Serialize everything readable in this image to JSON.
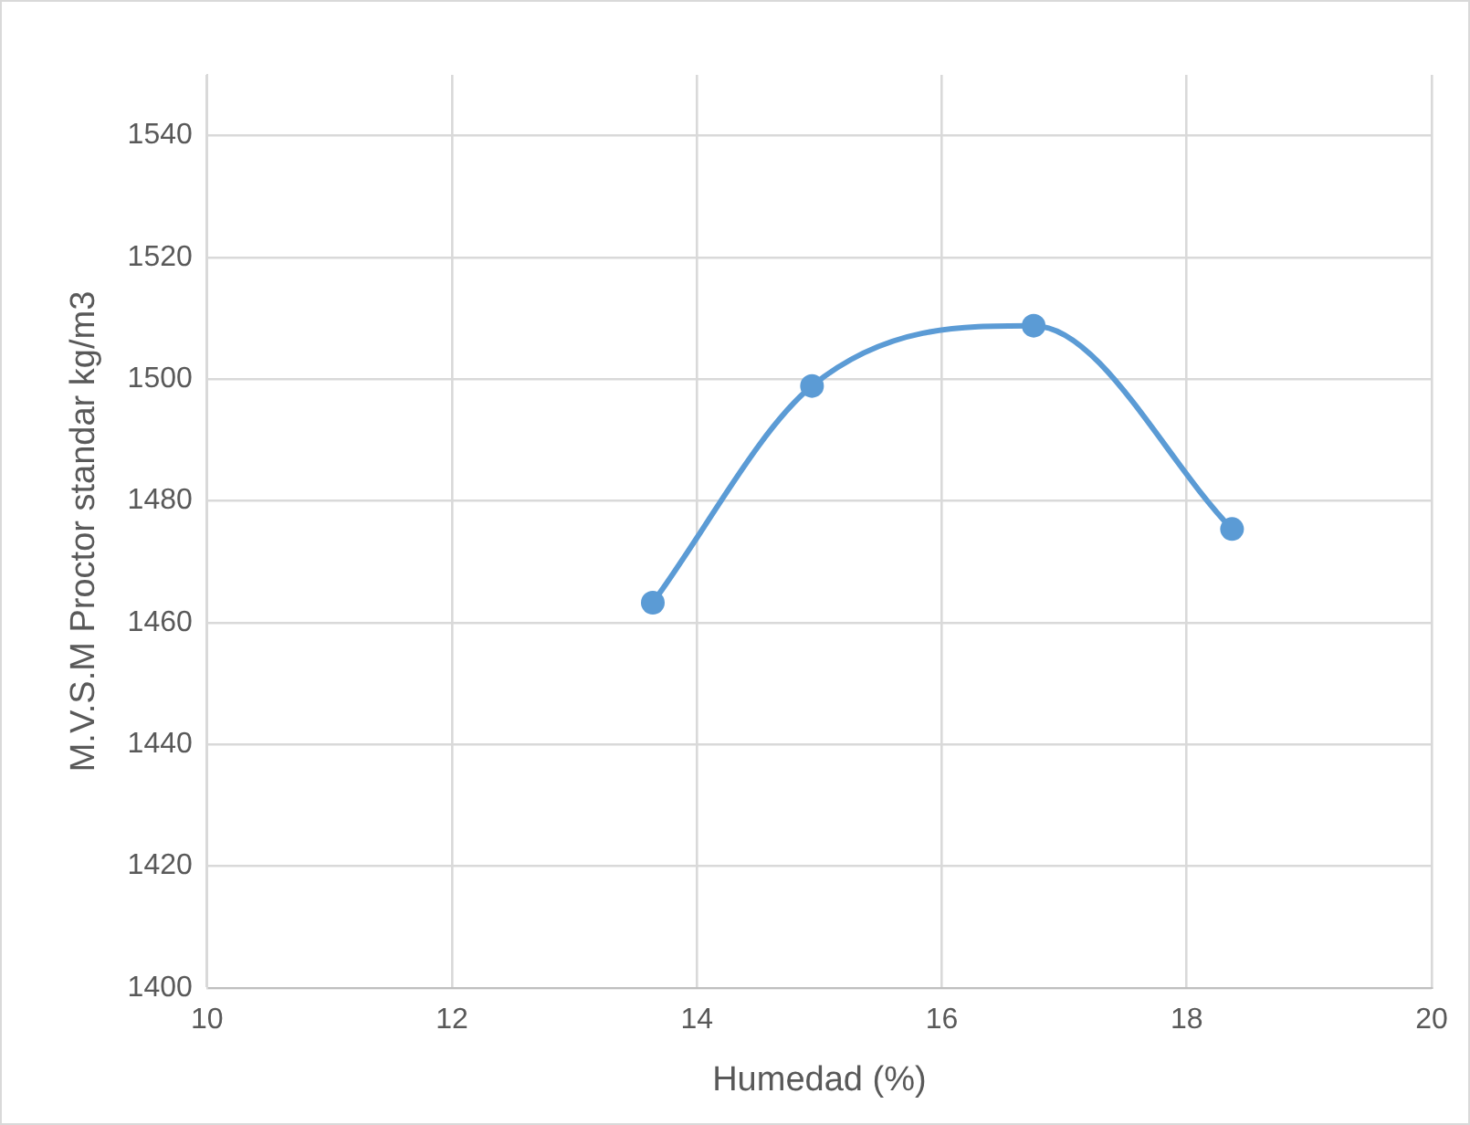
{
  "chart_data": {
    "type": "line",
    "xlabel": "Humedad (%)",
    "ylabel": "M.V.S.M Proctor standar kg/m3",
    "x": [
      13.64,
      14.94,
      16.75,
      18.37
    ],
    "series": [
      {
        "color": "#5b9bd5",
        "values": [
          1463.3,
          1498.9,
          1508.8,
          1475.4
        ]
      }
    ],
    "xlim": [
      10,
      20
    ],
    "xticks": [
      10,
      12,
      14,
      16,
      18,
      20
    ],
    "ylim": [
      1400,
      1550
    ],
    "yticks": [
      1400,
      1420,
      1440,
      1460,
      1480,
      1500,
      1520,
      1540
    ],
    "grid": true,
    "legend": false,
    "marker": "circle",
    "line_style": "solid"
  }
}
